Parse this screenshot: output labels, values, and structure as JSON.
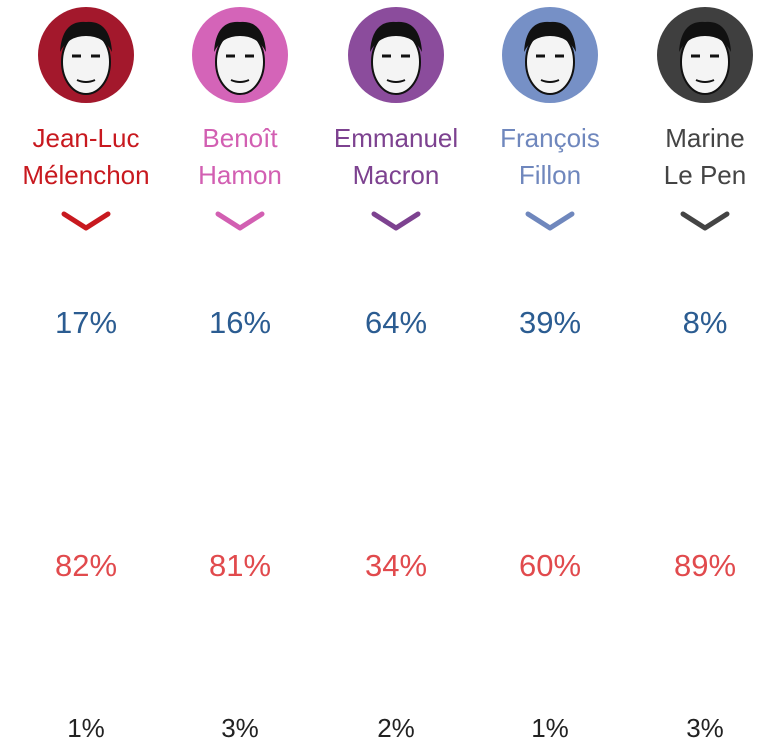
{
  "candidates": [
    {
      "name": [
        "Jean-Luc",
        "Mélenchon"
      ],
      "color": "#c8191f",
      "ring": "#a3182c"
    },
    {
      "name": [
        "Benoît",
        "Hamon"
      ],
      "color": "#d25fb2",
      "ring": "#d464b8"
    },
    {
      "name": [
        "Emmanuel",
        "Macron"
      ],
      "color": "#7d4290",
      "ring": "#8b4c9c"
    },
    {
      "name": [
        "François",
        "Fillon"
      ],
      "color": "#6f87bd",
      "ring": "#7690c6"
    },
    {
      "name": [
        "Marine",
        "Le Pen"
      ],
      "color": "#444444",
      "ring": "#3f3f3f"
    }
  ],
  "rows": [
    {
      "color": "#2b5c91",
      "values": [
        "17%",
        "16%",
        "64%",
        "39%",
        "8%"
      ]
    },
    {
      "color": "#e14a4d",
      "values": [
        "82%",
        "81%",
        "34%",
        "60%",
        "89%"
      ]
    },
    {
      "color": "#222222",
      "values": [
        "1%",
        "3%",
        "2%",
        "1%",
        "3%"
      ]
    }
  ]
}
